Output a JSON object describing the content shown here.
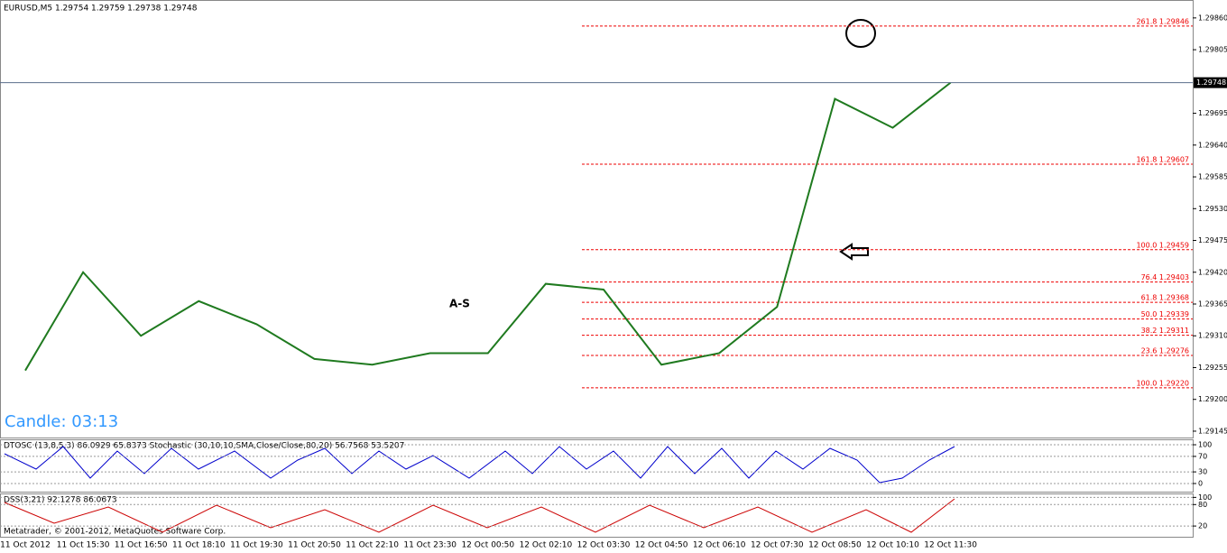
{
  "chart_data": [
    {
      "type": "line",
      "title": "EURUSD,M5  1.29754 1.29759 1.29738 1.29748",
      "categories": [
        "11 Oct 2012",
        "11 Oct 15:30",
        "11 Oct 16:50",
        "11 Oct 18:10",
        "11 Oct 19:30",
        "11 Oct 20:50",
        "11 Oct 22:10",
        "11 Oct 23:30",
        "12 Oct 00:50",
        "12 Oct 02:10",
        "12 Oct 03:30",
        "12 Oct 04:50",
        "12 Oct 06:10",
        "12 Oct 07:30",
        "12 Oct 08:50",
        "12 Oct 10:10",
        "12 Oct 11:30"
      ],
      "values": [
        1.2925,
        1.2942,
        1.2931,
        1.2937,
        1.2933,
        1.2927,
        1.2926,
        1.2928,
        1.2928,
        1.294,
        1.2939,
        1.2926,
        1.2928,
        1.2936,
        1.2972,
        1.2967,
        1.29748
      ],
      "color": "#1f7a1f",
      "ylim": [
        1.29134,
        1.29891
      ],
      "yticks": [
        {
          "value": 1.2986,
          "label": "1.29860"
        },
        {
          "value": 1.29805,
          "label": "1.29805"
        },
        {
          "value": 1.29695,
          "label": "1.29695"
        },
        {
          "value": 1.2964,
          "label": "1.29640"
        },
        {
          "value": 1.29585,
          "label": "1.29585"
        },
        {
          "value": 1.2953,
          "label": "1.29530"
        },
        {
          "value": 1.29475,
          "label": "1.29475"
        },
        {
          "value": 1.2942,
          "label": "1.29420"
        },
        {
          "value": 1.29365,
          "label": "1.29365"
        },
        {
          "value": 1.2931,
          "label": "1.29310"
        },
        {
          "value": 1.29255,
          "label": "1.29255"
        },
        {
          "value": 1.292,
          "label": "1.29200"
        },
        {
          "value": 1.29145,
          "label": "1.29145"
        }
      ],
      "current": 1.29748,
      "levels": [
        {
          "label": "261.8 1.29846",
          "value": 1.29846
        },
        {
          "label": "161.8 1.29607",
          "value": 1.29607
        },
        {
          "label": "100.0 1.29459",
          "value": 1.29459
        },
        {
          "label": "76.4 1.29403",
          "value": 1.29403
        },
        {
          "label": "61.8 1.29368",
          "value": 1.29368
        },
        {
          "label": "50.0 1.29339",
          "value": 1.29339
        },
        {
          "label": "38.2 1.29311",
          "value": 1.29311
        },
        {
          "label": "23.6 1.29276",
          "value": 1.29276
        },
        {
          "label": "100.0 1.29220",
          "value": 1.2922
        }
      ],
      "annotations": [
        "A-S",
        "Candle: 03:13"
      ]
    },
    {
      "type": "oscillator",
      "title": "DTOSC (13,8,5,3) 86.0929 65.8373  Stochastic (30,10,10,SMA,Close/Close,80,20) 56.7568 53.5207",
      "ylim": [
        -21,
        114
      ],
      "yticks": [
        0,
        30,
        70,
        100
      ]
    },
    {
      "type": "oscillator",
      "title": "DSS(3,21) 92.1278 86.0673",
      "ylim": [
        -10,
        111
      ],
      "yticks": [
        20,
        80,
        100
      ]
    }
  ],
  "footer": "Metatrader, © 2001-2012, MetaQuotes Software Corp."
}
